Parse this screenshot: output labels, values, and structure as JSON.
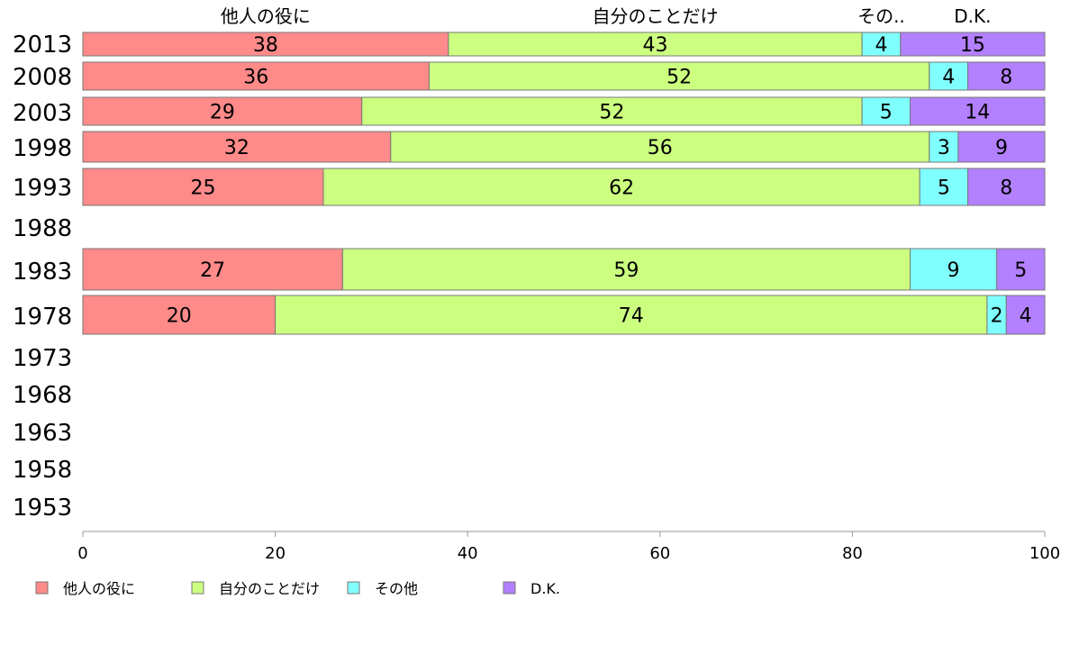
{
  "chart_data": {
    "type": "bar",
    "orientation": "horizontal",
    "stacked": true,
    "categories": [
      "2013",
      "2008",
      "2003",
      "1998",
      "1993",
      "1988",
      "1983",
      "1978",
      "1973",
      "1968",
      "1963",
      "1958",
      "1953"
    ],
    "series": [
      {
        "name": "他人の役に",
        "color": "#ff8a8a",
        "values": [
          38,
          36,
          29,
          32,
          25,
          null,
          27,
          20,
          null,
          null,
          null,
          null,
          null
        ]
      },
      {
        "name": "自分のことだけ",
        "color": "#ccff80",
        "values": [
          43,
          52,
          52,
          56,
          62,
          null,
          59,
          74,
          null,
          null,
          null,
          null,
          null
        ]
      },
      {
        "name": "その他",
        "color": "#80ffff",
        "values": [
          4,
          4,
          5,
          3,
          5,
          null,
          9,
          2,
          null,
          null,
          null,
          null,
          null
        ]
      },
      {
        "name": "D.K.",
        "color": "#b380ff",
        "values": [
          15,
          8,
          14,
          9,
          8,
          null,
          5,
          4,
          null,
          null,
          null,
          null,
          null
        ]
      }
    ],
    "top_labels": [
      "他人の役に",
      "自分のことだけ",
      "その..",
      "D.K."
    ],
    "xlim": [
      0,
      100
    ],
    "xticks": [
      0,
      20,
      40,
      60,
      80,
      100
    ],
    "grid": false,
    "legend_position": "bottom"
  }
}
